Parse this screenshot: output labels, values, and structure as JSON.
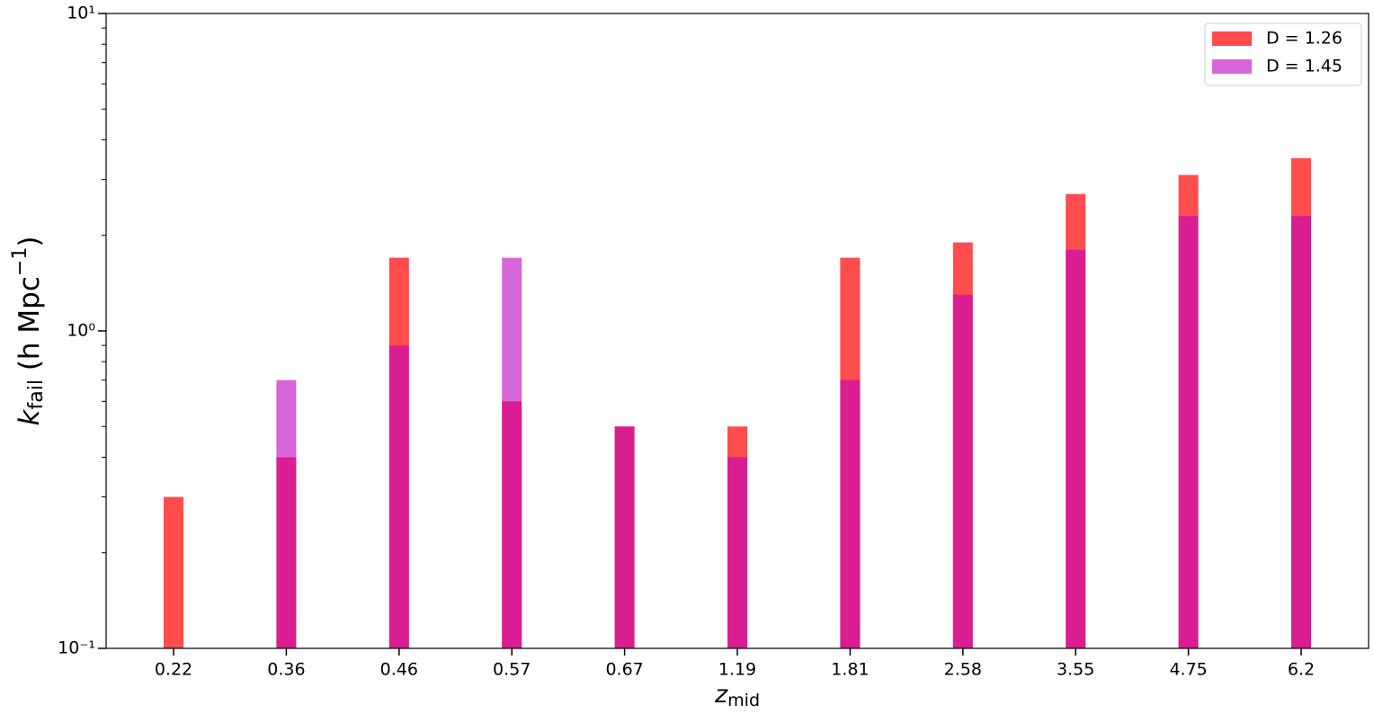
{
  "chart_data": {
    "type": "bar",
    "y_scale": "log",
    "x_label": [
      "z",
      "mid"
    ],
    "y_label": [
      "k",
      "fail",
      " (h Mpc",
      "−1",
      ")"
    ],
    "categories": [
      "0.22",
      "0.36",
      "0.46",
      "0.57",
      "0.67",
      "1.19",
      "1.81",
      "2.58",
      "3.55",
      "4.75",
      "6.2"
    ],
    "series": [
      {
        "name": "D = 1.26",
        "color": "#ff0000",
        "alpha": 0.7,
        "values": [
          0.3,
          0.4,
          1.7,
          0.6,
          0.5,
          0.5,
          1.7,
          1.9,
          2.7,
          3.1,
          3.5
        ]
      },
      {
        "name": "D = 1.45",
        "color": "#bf00bf",
        "alpha": 0.6,
        "values": [
          null,
          0.7,
          0.9,
          1.7,
          0.5,
          0.4,
          0.7,
          1.3,
          1.8,
          2.3,
          2.3
        ]
      }
    ],
    "ylim": [
      0.1,
      10
    ],
    "yticks": [
      {
        "value": 0.1,
        "label": "10⁻¹"
      },
      {
        "value": 1,
        "label": "10⁰"
      },
      {
        "value": 10,
        "label": "10¹"
      }
    ],
    "legend": "upper right"
  }
}
